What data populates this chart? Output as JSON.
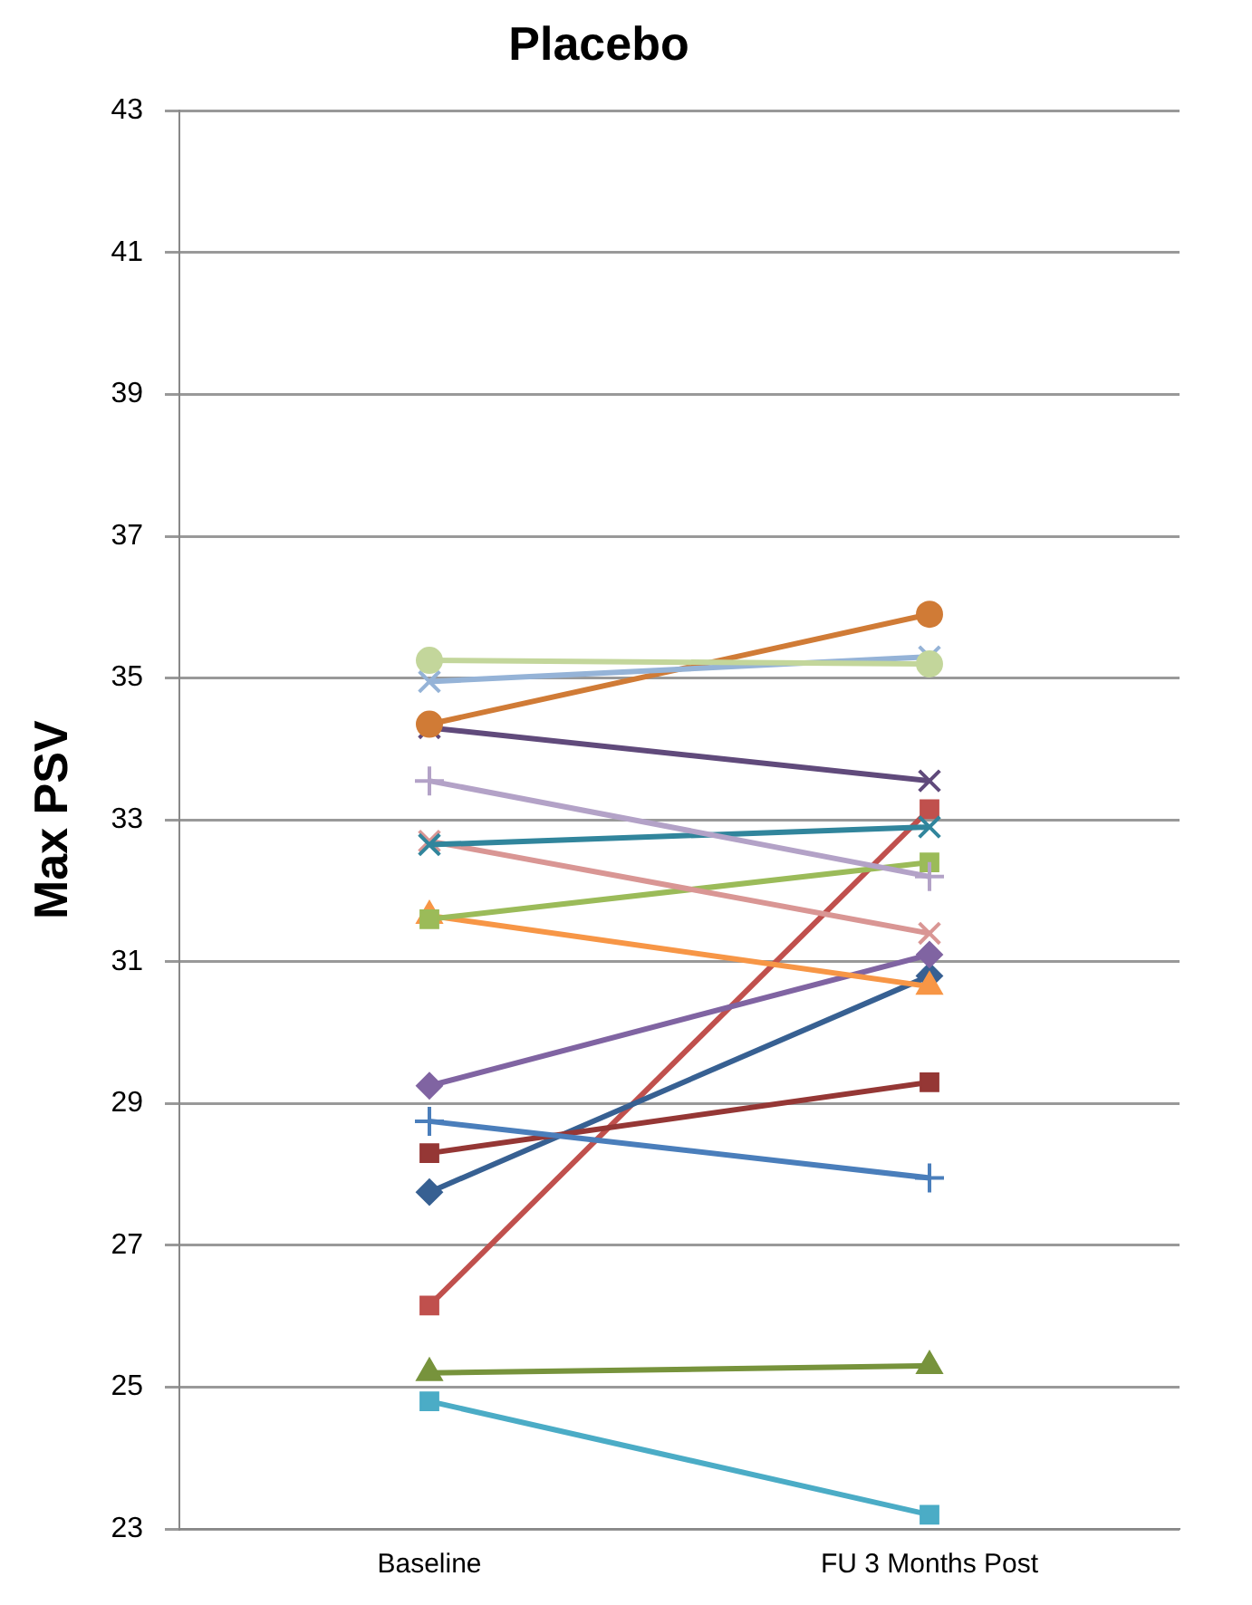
{
  "chart_data": {
    "type": "line",
    "title": "Placebo",
    "ylabel": "Max PSV",
    "categories": [
      "Baseline",
      "FU 3 Months Post"
    ],
    "ylim": [
      23,
      43
    ],
    "yticks": [
      23,
      25,
      27,
      29,
      31,
      33,
      35,
      37,
      39,
      41,
      43
    ],
    "grid": "y",
    "legend": false,
    "series": [
      {
        "color": "#c3d69b",
        "marker": "circle",
        "values": [
          35.25,
          35.2
        ]
      },
      {
        "color": "#95b3d7",
        "marker": "cross",
        "values": [
          34.95,
          35.3
        ]
      },
      {
        "color": "#d07b36",
        "marker": "circle",
        "values": [
          34.35,
          35.9
        ]
      },
      {
        "color": "#604a7b",
        "marker": "cross",
        "values": [
          34.3,
          33.55
        ]
      },
      {
        "color": "#b3a2c7",
        "marker": "plus",
        "values": [
          33.55,
          32.2
        ]
      },
      {
        "color": "#31859c",
        "marker": "cross",
        "values": [
          32.65,
          32.9
        ]
      },
      {
        "color": "#d99694",
        "marker": "cross",
        "values": [
          32.7,
          31.4
        ]
      },
      {
        "color": "#9bbb59",
        "marker": "square",
        "values": [
          31.6,
          32.4
        ]
      },
      {
        "color": "#f79646",
        "marker": "triangle",
        "values": [
          31.65,
          30.65
        ]
      },
      {
        "color": "#8064a2",
        "marker": "diamond",
        "values": [
          29.25,
          31.1
        ]
      },
      {
        "color": "#4a7ebb",
        "marker": "plus",
        "values": [
          28.75,
          27.95
        ]
      },
      {
        "color": "#953735",
        "marker": "square",
        "values": [
          28.3,
          29.3
        ]
      },
      {
        "color": "#376092",
        "marker": "diamond",
        "values": [
          27.75,
          30.8
        ]
      },
      {
        "color": "#c0504d",
        "marker": "square",
        "values": [
          26.15,
          33.15
        ]
      },
      {
        "color": "#77933c",
        "marker": "triangle",
        "values": [
          25.2,
          25.3
        ]
      },
      {
        "color": "#4bacc6",
        "marker": "square",
        "values": [
          24.8,
          23.2
        ]
      }
    ]
  }
}
